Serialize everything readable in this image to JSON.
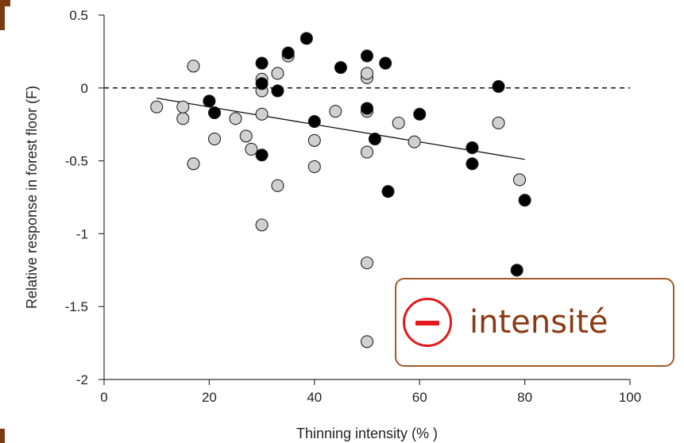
{
  "colors": {
    "accent": "#7a3b12",
    "minus_icon": "#e11b1b",
    "annotation_text": "#8a3a14",
    "annotation_border": "#a35a2a",
    "filled_point": "#000000",
    "open_point": "#d0d0d0"
  },
  "annotation": {
    "text": "intensité",
    "icon": "minus-circle-icon"
  },
  "chart_data": {
    "type": "scatter",
    "xlabel": "Thinning intensity (% )",
    "ylabel": "Relative response in forest floor (F)",
    "xlim": [
      0,
      100
    ],
    "ylim": [
      -2,
      0.5
    ],
    "xticks": [
      "0",
      "20",
      "40",
      "60",
      "80",
      "100"
    ],
    "yticks": [
      "0.5",
      "0",
      "-0.5",
      "-1",
      "-1.5",
      "-2"
    ],
    "grid": false,
    "reference_line": {
      "y": 0,
      "style": "dashed"
    },
    "trend_line": {
      "x": [
        10,
        80
      ],
      "y": [
        -0.07,
        -0.49
      ]
    },
    "series": [
      {
        "marker": "filled",
        "points": [
          [
            20,
            -0.09
          ],
          [
            21,
            -0.17
          ],
          [
            30,
            0.17
          ],
          [
            30,
            0.03
          ],
          [
            30,
            -0.46
          ],
          [
            33,
            -0.02
          ],
          [
            35,
            0.24
          ],
          [
            38.5,
            0.34
          ],
          [
            40,
            -0.23
          ],
          [
            45,
            0.14
          ],
          [
            50,
            0.22
          ],
          [
            50,
            -0.14
          ],
          [
            51.5,
            -0.35
          ],
          [
            53.5,
            0.17
          ],
          [
            54,
            -0.71
          ],
          [
            60,
            -0.18
          ],
          [
            70,
            -0.41
          ],
          [
            70,
            -0.52
          ],
          [
            75,
            0.01
          ],
          [
            78.5,
            -1.25
          ],
          [
            80,
            -0.77
          ]
        ]
      },
      {
        "marker": "open",
        "points": [
          [
            10,
            -0.13
          ],
          [
            15,
            -0.21
          ],
          [
            15,
            -0.13
          ],
          [
            17,
            0.15
          ],
          [
            17,
            -0.52
          ],
          [
            21,
            -0.35
          ],
          [
            25,
            -0.21
          ],
          [
            27,
            -0.33
          ],
          [
            28,
            -0.42
          ],
          [
            30,
            -0.94
          ],
          [
            30,
            -0.02
          ],
          [
            30,
            -0.18
          ],
          [
            30,
            0.06
          ],
          [
            33,
            0.1
          ],
          [
            33,
            -0.67
          ],
          [
            35,
            0.22
          ],
          [
            40,
            -0.36
          ],
          [
            40,
            -0.54
          ],
          [
            44,
            -0.16
          ],
          [
            50,
            0.07
          ],
          [
            50,
            0.1
          ],
          [
            50,
            -0.16
          ],
          [
            50,
            -0.44
          ],
          [
            50,
            -1.2
          ],
          [
            50,
            -1.74
          ],
          [
            56,
            -0.24
          ],
          [
            59,
            -0.37
          ],
          [
            75,
            -0.24
          ],
          [
            79,
            -0.63
          ]
        ]
      }
    ]
  }
}
